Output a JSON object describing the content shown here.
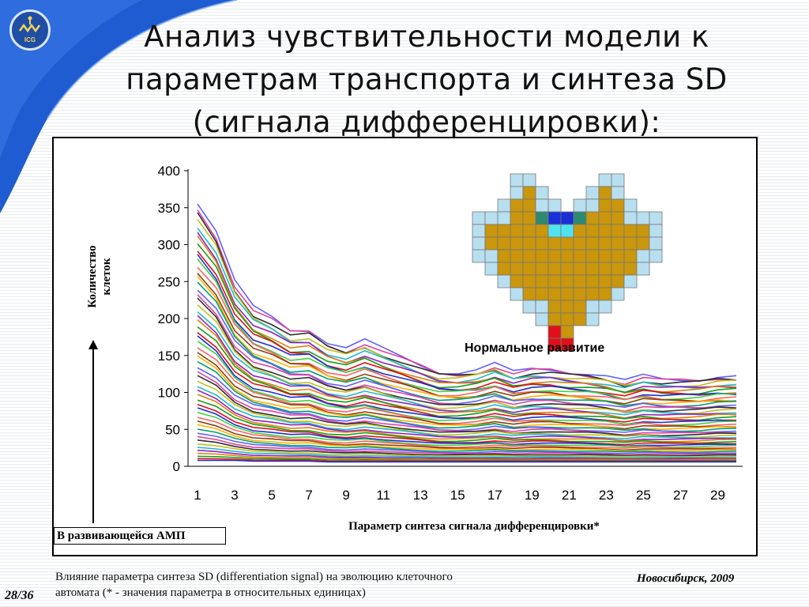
{
  "slide": {
    "title_lines": [
      "Анализ чувствительности модели к",
      "параметрам транспорта и синтеза SD",
      "(сигнала дифференцировки):"
    ],
    "logo_text": "ICG",
    "ylabel_lines": [
      "Количество",
      "клеток"
    ],
    "xlabel": "Параметр синтеза сигнала дифференцировки*",
    "amp_label": "В развивающейся АМП",
    "normal_label": "Нормальное развитие",
    "caption_lines": [
      "Влияние параметра синтеза SD (differentiation signal) на эволюцию клеточного",
      "автомата (* - значения параметра в относительных единицах)"
    ],
    "city": "Новосибирск, 2009",
    "page": "28/36"
  },
  "colors": {
    "corner_blue": "#1f5bd1",
    "heart_gold": "#c9960c",
    "heart_light": "#b8dff0",
    "heart_blue": "#1a2fd6",
    "heart_cyan": "#4fe3f0",
    "heart_teal": "#2e8a6e",
    "heart_red": "#e0101a"
  },
  "chart_data": {
    "type": "line",
    "x": [
      1,
      2,
      3,
      4,
      5,
      6,
      7,
      8,
      9,
      10,
      11,
      12,
      13,
      14,
      15,
      16,
      17,
      18,
      19,
      20,
      21,
      22,
      23,
      24,
      25,
      26,
      27,
      28,
      29,
      30
    ],
    "xticks": [
      "1",
      "3",
      "5",
      "7",
      "9",
      "11",
      "13",
      "15",
      "17",
      "19",
      "21",
      "23",
      "25",
      "27",
      "29"
    ],
    "yticks": [
      "0",
      "50",
      "100",
      "150",
      "200",
      "250",
      "300",
      "350",
      "400"
    ],
    "ylim": [
      0,
      400
    ],
    "xlim": [
      1,
      30
    ],
    "series_values_top": [
      357,
      318,
      250,
      215,
      202,
      185,
      186,
      168,
      160,
      170,
      158,
      148,
      138,
      128,
      127,
      130,
      138,
      127,
      132,
      132,
      128,
      126,
      122,
      115,
      122,
      118,
      118,
      118,
      122,
      122
    ],
    "series_values_bottom": [
      8,
      8,
      8,
      7,
      7,
      7,
      7,
      6,
      6,
      6,
      6,
      6,
      6,
      6,
      6,
      6,
      6,
      6,
      6,
      6,
      6,
      6,
      6,
      6,
      6,
      6,
      6,
      6,
      6,
      6
    ],
    "series_count": 55,
    "legend": "none",
    "grid": false
  },
  "heart": {
    "cell_grid": [
      "...LL.....LL...",
      "...LGL...LGL...",
      "..LGGLL.LLGGL..",
      "LLLGGTBBTGGGLLL",
      "LGGGGGCCGGGGGGL",
      "LGGGGGGGGGGGGGL",
      "LLGGGGGGGGGGGLL",
      ".LGGGGGGGGGGGL.",
      "..LGGGGGGGGGL..",
      "...LGGGGGGGL...",
      "....LLGGGLL....",
      ".....LGGGL.....",
      "......RG.......",
      "......RR......."
    ]
  }
}
